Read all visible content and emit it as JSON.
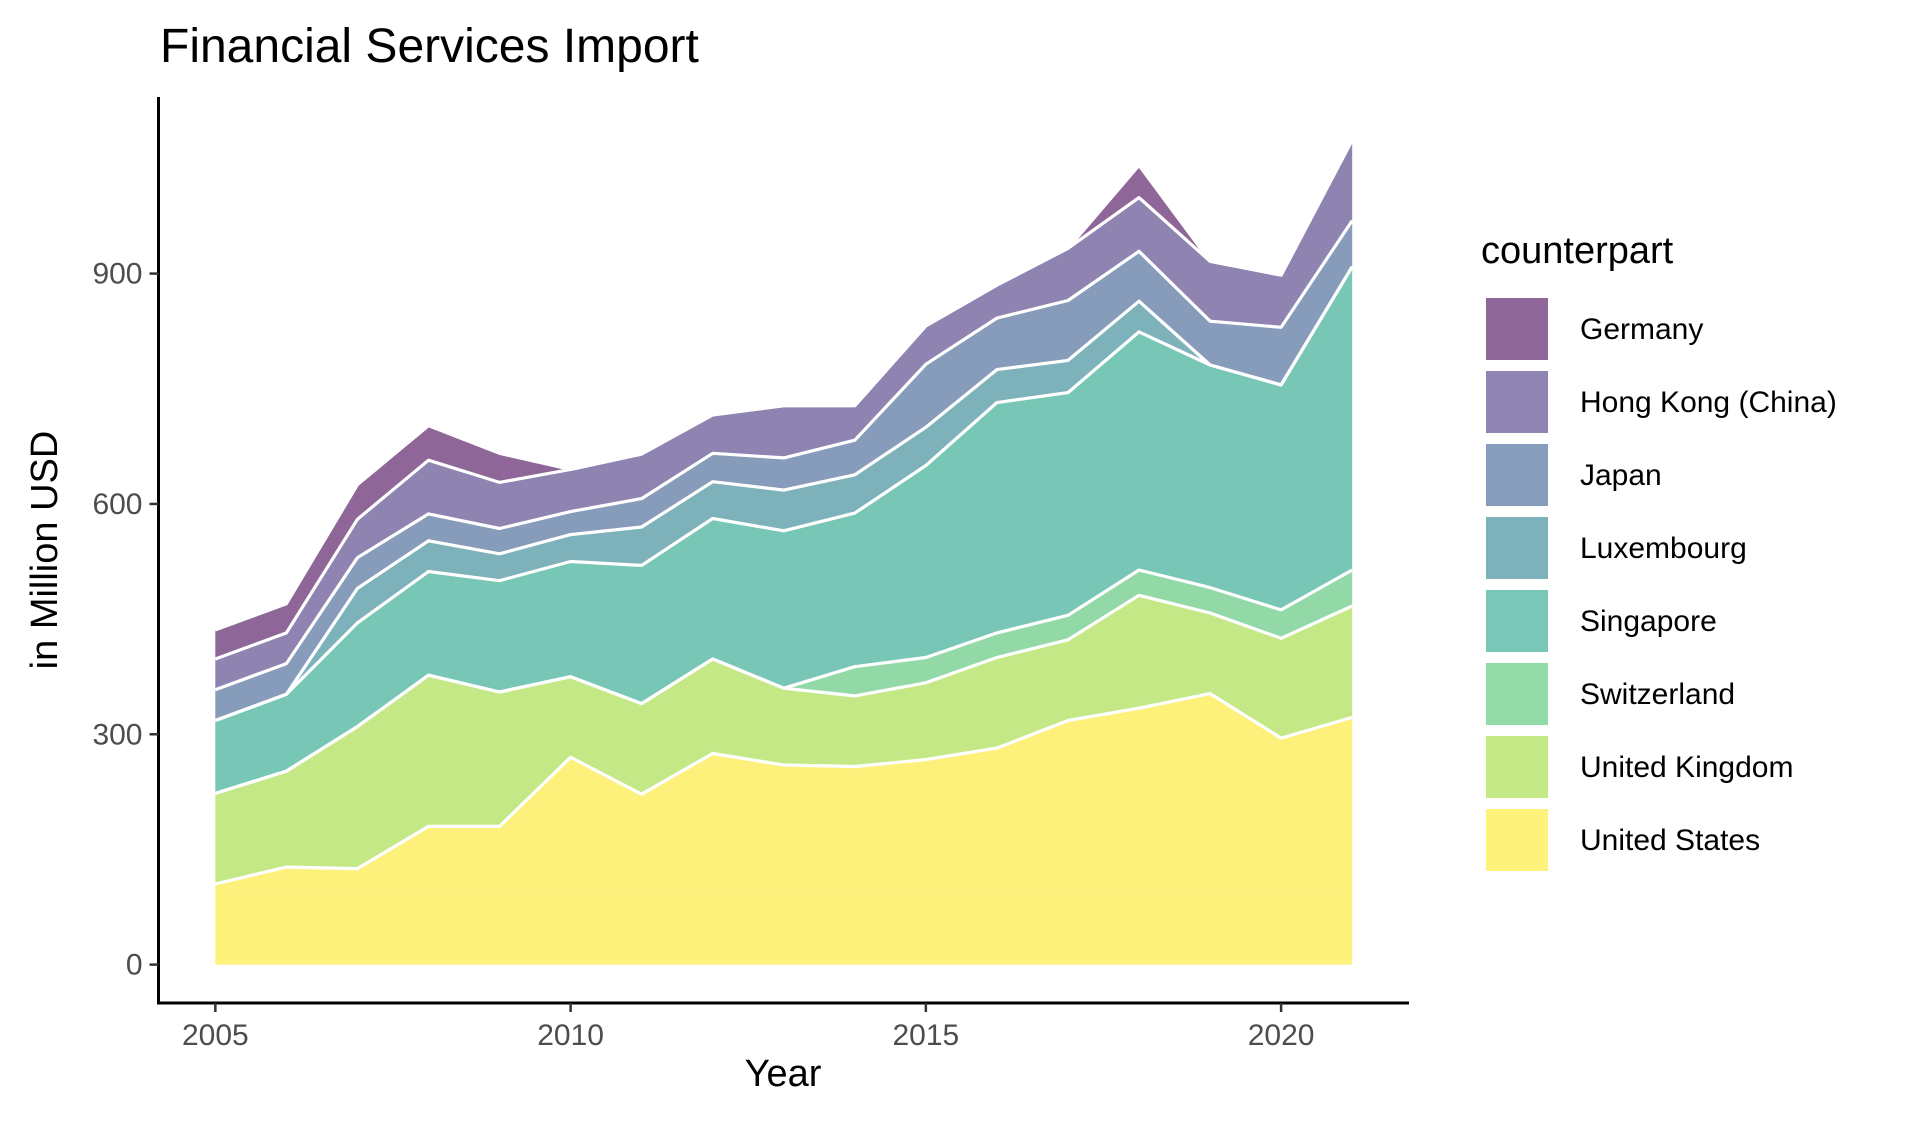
{
  "chart_data": {
    "type": "area",
    "stacked": true,
    "title": "Financial Services Import",
    "xlabel": "Year",
    "ylabel": "in Million USD",
    "xlim": [
      2004.2,
      2021.8
    ],
    "ylim": [
      -50,
      1130
    ],
    "x_ticks": [
      2005,
      2010,
      2015,
      2020
    ],
    "y_ticks": [
      0,
      300,
      600,
      900
    ],
    "grid": false,
    "legend": {
      "title": "counterpart",
      "position": "right"
    },
    "x": [
      2005,
      2006,
      2007,
      2008,
      2009,
      2010,
      2011,
      2012,
      2013,
      2014,
      2015,
      2016,
      2017,
      2018,
      2019,
      2020,
      2021
    ],
    "series": [
      {
        "name": "United States",
        "color": "#FDE725",
        "values": [
          105,
          127,
          125,
          180,
          180,
          270,
          222,
          275,
          260,
          258,
          267,
          282,
          318,
          334,
          353,
          295,
          322
        ]
      },
      {
        "name": "United Kingdom",
        "color": "#A0DA39",
        "values": [
          118,
          125,
          185,
          197,
          175,
          105,
          118,
          123,
          100,
          92,
          100,
          118,
          105,
          147,
          105,
          130,
          145
        ]
      },
      {
        "name": "Switzerland",
        "color": "#4AC16D",
        "values": [
          null,
          null,
          null,
          null,
          null,
          null,
          null,
          null,
          null,
          38,
          33,
          32,
          32,
          33,
          33,
          37,
          47
        ]
      },
      {
        "name": "Singapore",
        "color": "#1FA187",
        "values": [
          95,
          100,
          135,
          135,
          145,
          150,
          180,
          183,
          205,
          200,
          250,
          300,
          290,
          310,
          290,
          293,
          395
        ]
      },
      {
        "name": "Luxembourg",
        "color": "#277F8E",
        "values": [
          null,
          null,
          45,
          40,
          35,
          35,
          50,
          48,
          53,
          50,
          50,
          43,
          42,
          40,
          null,
          null,
          null
        ]
      },
      {
        "name": "Japan",
        "color": "#365C8D",
        "values": [
          40,
          40,
          40,
          35,
          33,
          30,
          37,
          37,
          42,
          45,
          82,
          67,
          78,
          65,
          57,
          75,
          60
        ]
      },
      {
        "name": "Hong Kong (China)",
        "color": "#46327E",
        "values": [
          40,
          40,
          50,
          70,
          60,
          55,
          58,
          50,
          68,
          45,
          50,
          43,
          68,
          70,
          78,
          68,
          105
        ]
      },
      {
        "name": "Germany",
        "color": "#440154",
        "values": [
          38,
          38,
          45,
          45,
          38,
          null,
          null,
          null,
          null,
          null,
          null,
          null,
          null,
          42,
          null,
          null,
          null
        ]
      }
    ]
  }
}
